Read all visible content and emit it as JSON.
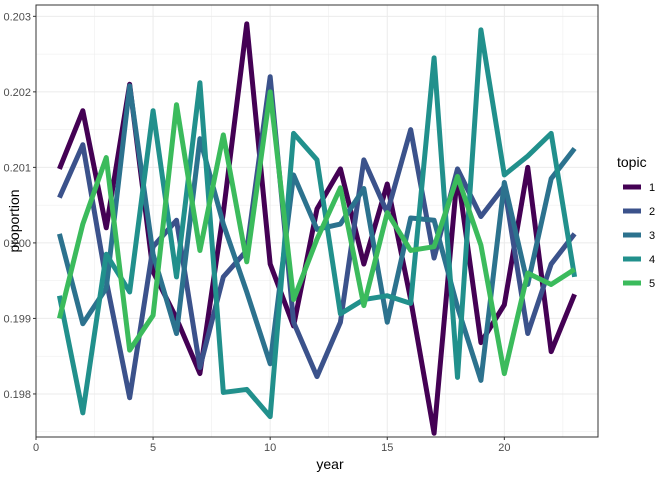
{
  "chart_data": {
    "type": "line",
    "xlabel": "year",
    "ylabel": "proportion",
    "xlim": [
      0.0,
      24.0
    ],
    "ylim": [
      0.19743,
      0.20315
    ],
    "xticks": [
      0,
      5,
      10,
      15,
      20
    ],
    "yticks": [
      0.198,
      0.199,
      0.2,
      0.201,
      0.202,
      0.203
    ],
    "ytick_labels": [
      "0.198",
      "0.199",
      "0.200",
      "0.201",
      "0.202",
      "0.203"
    ],
    "grid": true,
    "legend_title": "topic",
    "legend_position": "right",
    "x": [
      1,
      2,
      3,
      4,
      5,
      6,
      7,
      8,
      9,
      10,
      11,
      12,
      13,
      14,
      15,
      16,
      17,
      18,
      19,
      20,
      21,
      22,
      23
    ],
    "series": [
      {
        "name": "1",
        "color": "#440154",
        "values": [
          0.20098,
          0.20175,
          0.2002,
          0.2021,
          0.19962,
          0.199,
          0.19827,
          0.2004,
          0.2029,
          0.19972,
          0.1989,
          0.20045,
          0.20098,
          0.19972,
          0.20078,
          0.19925,
          0.19748,
          0.20093,
          0.19868,
          0.19918,
          0.201,
          0.19856,
          0.19932
        ]
      },
      {
        "name": "2",
        "color": "#3B528B",
        "values": [
          0.2006,
          0.2013,
          0.1995,
          0.19795,
          0.19995,
          0.2003,
          0.19835,
          0.19955,
          0.1999,
          0.2022,
          0.19895,
          0.19823,
          0.19895,
          0.2011,
          0.2004,
          0.2015,
          0.1998,
          0.20098,
          0.20035,
          0.20075,
          0.1988,
          0.19972,
          0.20012
        ]
      },
      {
        "name": "3",
        "color": "#2C728E",
        "values": [
          0.20012,
          0.19893,
          0.1994,
          0.20208,
          0.19985,
          0.1988,
          0.20138,
          0.20025,
          0.19935,
          0.1984,
          0.2009,
          0.20018,
          0.20025,
          0.20072,
          0.19895,
          0.20033,
          0.2003,
          0.19915,
          0.19818,
          0.2008,
          0.19945,
          0.20085,
          0.20125
        ]
      },
      {
        "name": "4",
        "color": "#21908C",
        "values": [
          0.1993,
          0.19775,
          0.19985,
          0.19935,
          0.20175,
          0.19955,
          0.20212,
          0.19802,
          0.19806,
          0.1977,
          0.20145,
          0.2011,
          0.19906,
          0.19925,
          0.1993,
          0.1992,
          0.20245,
          0.19822,
          0.20282,
          0.2009,
          0.20115,
          0.20145,
          0.19955
        ]
      },
      {
        "name": "5",
        "color": "#3BBB5C",
        "values": [
          0.199,
          0.20025,
          0.20113,
          0.19858,
          0.19904,
          0.20183,
          0.1999,
          0.20143,
          0.19975,
          0.202,
          0.19925,
          0.20005,
          0.20073,
          0.19917,
          0.2004,
          0.1999,
          0.19995,
          0.20088,
          0.19997,
          0.19827,
          0.1996,
          0.19945,
          0.19965
        ]
      }
    ]
  }
}
